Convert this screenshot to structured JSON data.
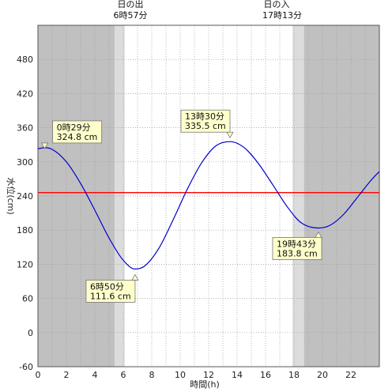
{
  "chart_data": {
    "type": "line",
    "xlabel": "時間(h)",
    "ylabel": "水位(cm)",
    "xlim": [
      0,
      24
    ],
    "ylim": [
      -60,
      540
    ],
    "x_ticks": [
      0,
      2,
      4,
      6,
      8,
      10,
      12,
      14,
      16,
      18,
      20,
      22
    ],
    "y_ticks": [
      -60,
      0,
      60,
      120,
      180,
      240,
      300,
      360,
      420,
      480
    ],
    "grid": true,
    "series": [
      {
        "color": "#0000cc",
        "points": [
          [
            0.0,
            323
          ],
          [
            0.48,
            324.8
          ],
          [
            1.0,
            322
          ],
          [
            2.0,
            300
          ],
          [
            3.0,
            262
          ],
          [
            4.0,
            215
          ],
          [
            5.0,
            166
          ],
          [
            6.0,
            127
          ],
          [
            6.83,
            111.6
          ],
          [
            7.5,
            117
          ],
          [
            8.5,
            148
          ],
          [
            9.5,
            198
          ],
          [
            10.5,
            252
          ],
          [
            11.5,
            298
          ],
          [
            12.5,
            328
          ],
          [
            13.5,
            335.5
          ],
          [
            14.5,
            325
          ],
          [
            15.5,
            297
          ],
          [
            16.5,
            260
          ],
          [
            17.5,
            222
          ],
          [
            18.5,
            193
          ],
          [
            19.72,
            183.8
          ],
          [
            20.5,
            188
          ],
          [
            21.5,
            208
          ],
          [
            22.5,
            239
          ],
          [
            23.5,
            270
          ],
          [
            24.0,
            283
          ]
        ]
      }
    ],
    "reference_line": {
      "y": 246,
      "color": "#ff0000"
    },
    "annotations": [
      {
        "time": "0時29分",
        "level": "324.8 cm",
        "x": 0.48,
        "y": 324.8
      },
      {
        "time": "6時50分",
        "level": "111.6 cm",
        "x": 6.83,
        "y": 111.6
      },
      {
        "time": "13時30分",
        "level": "335.5 cm",
        "x": 13.5,
        "y": 335.5
      },
      {
        "time": "19時43分",
        "level": "183.8 cm",
        "x": 19.72,
        "y": 183.8
      }
    ],
    "sunrise": {
      "label": "日の出",
      "time": "6時57分",
      "x": 6.95
    },
    "sunset": {
      "label": "日の入",
      "time": "17時13分",
      "x": 17.22
    },
    "shading": {
      "night": [
        [
          0,
          5.4
        ],
        [
          18.7,
          24
        ]
      ],
      "twilight": [
        [
          5.4,
          6.1
        ],
        [
          17.9,
          18.7
        ]
      ],
      "night_color": "#c0c0c0",
      "twilight_color": "#dcdcdc"
    }
  }
}
